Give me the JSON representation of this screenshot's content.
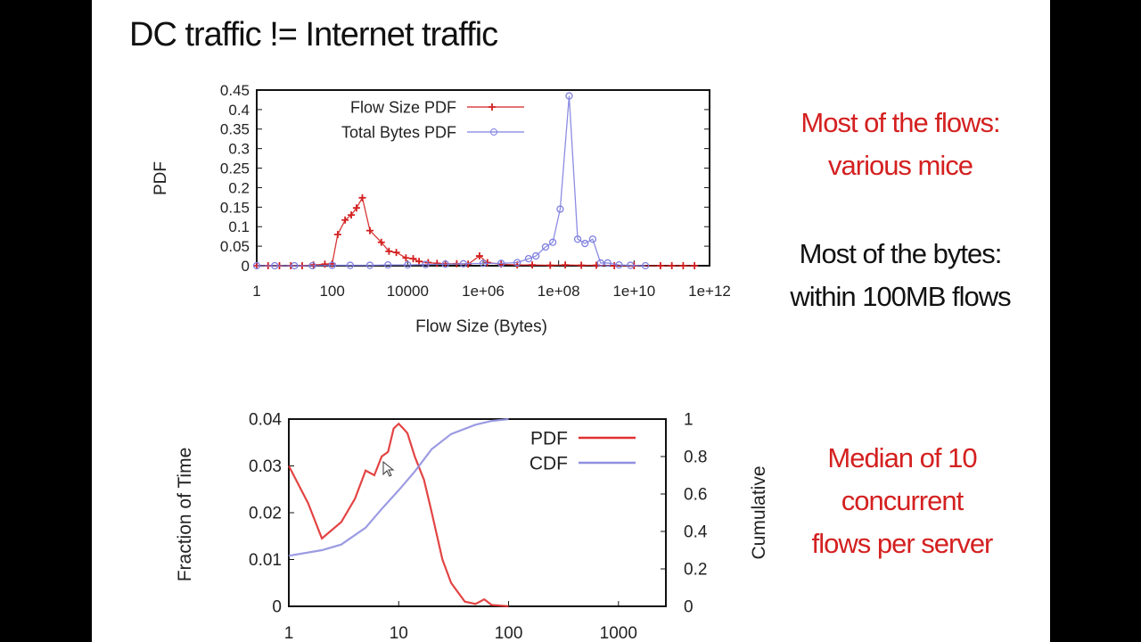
{
  "slide": {
    "title": "DC traffic != Internet traffic",
    "notes": [
      {
        "lines": [
          "Most of the flows:",
          "various mice"
        ],
        "color": "#d42020"
      },
      {
        "lines": [
          "Most of the bytes:",
          "within 100MB flows"
        ],
        "color": "#111111"
      },
      {
        "lines": [
          "Median of 10",
          "concurrent",
          "flows per server"
        ],
        "color": "#d42020"
      }
    ]
  },
  "chart_data": [
    {
      "type": "line",
      "xlabel": "Flow Size (Bytes)",
      "ylabel": "PDF",
      "xscale": "log",
      "xlim": [
        1,
        1000000000000.0
      ],
      "ylim": [
        0,
        0.45
      ],
      "xticks": [
        "1",
        "100",
        "10000",
        "1e+06",
        "1e+08",
        "1e+10",
        "1e+12"
      ],
      "yticks": [
        "0",
        "0.05",
        "0.1",
        "0.15",
        "0.2",
        "0.25",
        "0.3",
        "0.35",
        "0.4",
        "0.45"
      ],
      "legend": "top-left",
      "series": [
        {
          "name": "Flow Size PDF",
          "color": "#d42020",
          "marker": "plus",
          "x": [
            1,
            2,
            4,
            8,
            16,
            32,
            64,
            100,
            140,
            220,
            320,
            440,
            630,
            1000,
            2000,
            3200,
            5000,
            9000,
            14000,
            20000,
            35000,
            60000,
            100000,
            200000,
            400000,
            800000,
            1300000.0,
            3000000.0,
            8000000.0,
            20000000.0,
            60000000.0,
            150000000.0,
            400000000.0,
            1000000000.0,
            3000000000.0,
            10000000000.0,
            50000000000.0,
            100000000000.0,
            200000000000.0,
            400000000000.0
          ],
          "y": [
            0,
            0,
            0,
            0,
            0,
            0.002,
            0.004,
            0.005,
            0.08,
            0.117,
            0.13,
            0.148,
            0.174,
            0.09,
            0.06,
            0.037,
            0.034,
            0.02,
            0.018,
            0.011,
            0.008,
            0.006,
            0.005,
            0.005,
            0.004,
            0.025,
            0.008,
            0.004,
            0.002,
            0.002,
            0.001,
            0.002,
            0.001,
            0.001,
            0,
            0,
            0,
            0,
            0,
            0
          ]
        },
        {
          "name": "Total Bytes PDF",
          "color": "#8080e0",
          "marker": "circle",
          "x": [
            1,
            3,
            10,
            30,
            100,
            300,
            1000,
            3000,
            10000,
            30000,
            100000,
            300000,
            1000000.0,
            3000000.0,
            8000000.0,
            16000000.0,
            25000000.0,
            45000000.0,
            70000000.0,
            110000000.0,
            190000000.0,
            320000000.0,
            500000000.0,
            800000000.0,
            1300000000.0,
            2000000000.0,
            4000000000.0,
            8000000000.0,
            20000000000.0
          ],
          "y": [
            0,
            0,
            0,
            0,
            0.001,
            0.001,
            0.001,
            0.002,
            0.002,
            0.003,
            0.004,
            0.005,
            0.006,
            0.006,
            0.008,
            0.018,
            0.025,
            0.048,
            0.06,
            0.145,
            0.435,
            0.068,
            0.057,
            0.068,
            0.007,
            0.007,
            0.002,
            0.001,
            0
          ]
        }
      ]
    },
    {
      "type": "line",
      "xlabel": "",
      "ylabel": "Fraction of Time",
      "y2label": "Cumulative",
      "xscale": "log",
      "xlim": [
        1,
        2700
      ],
      "ylim": [
        0,
        0.04
      ],
      "y2lim": [
        0,
        1
      ],
      "xticks": [
        "1",
        "10",
        "100",
        "1000"
      ],
      "yticks": [
        "0",
        "0.01",
        "0.02",
        "0.03",
        "0.04"
      ],
      "y2ticks": [
        "0",
        "0.2",
        "0.4",
        "0.6",
        "0.8",
        "1"
      ],
      "legend": "top-right",
      "series": [
        {
          "name": "PDF",
          "color": "#e03030",
          "axis": "left",
          "x": [
            1,
            1.5,
            2,
            3,
            4,
            5,
            6,
            7,
            8,
            9,
            10,
            11,
            12,
            14,
            17,
            20,
            25,
            30,
            40,
            50,
            60,
            70,
            100
          ],
          "y": [
            0.03,
            0.022,
            0.0145,
            0.018,
            0.023,
            0.029,
            0.028,
            0.032,
            0.033,
            0.038,
            0.039,
            0.038,
            0.037,
            0.032,
            0.027,
            0.02,
            0.01,
            0.005,
            0.001,
            0.0005,
            0.0015,
            0.0003,
            0
          ]
        },
        {
          "name": "CDF",
          "color": "#9090e0",
          "axis": "right",
          "x": [
            1,
            2,
            3,
            5,
            7,
            10,
            14,
            20,
            30,
            50,
            70,
            100
          ],
          "y": [
            0.27,
            0.3,
            0.33,
            0.42,
            0.52,
            0.62,
            0.72,
            0.84,
            0.92,
            0.97,
            0.99,
            1.0
          ]
        }
      ]
    }
  ]
}
